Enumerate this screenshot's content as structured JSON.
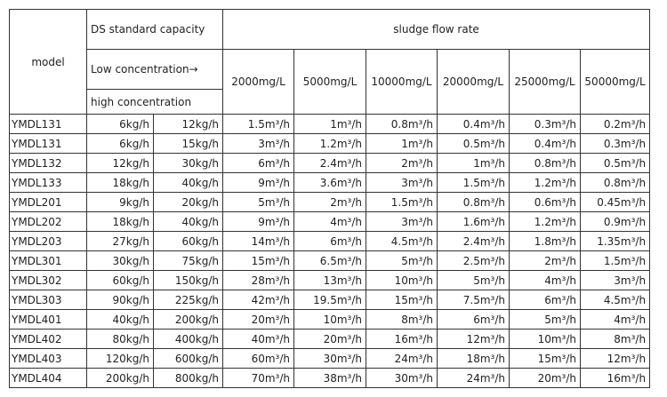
{
  "header": {
    "model": "model",
    "ds_capacity": "DS standard capacity",
    "low_concentration": "Low concentration→",
    "high_concentration": "high concentration",
    "flow_rate": "sludge flow rate",
    "concentrations": [
      "2000mg/L",
      "5000mg/L",
      "10000mg/L",
      "20000mg/L",
      "25000mg/L",
      "50000mg/L"
    ]
  },
  "table": {
    "rows": [
      [
        "YMDL131",
        "6kg/h",
        "12kg/h",
        "1.5m³/h",
        "1m³/h",
        "0.8m³/h",
        "0.4m³/h",
        "0.3m³/h",
        "0.2m³/h"
      ],
      [
        "YMDL131",
        "6kg/h",
        "15kg/h",
        "3m³/h",
        "1.2m³/h",
        "1m³/h",
        "0.5m³/h",
        "0.4m³/h",
        "0.3m³/h"
      ],
      [
        "YMDL132",
        "12kg/h",
        "30kg/h",
        "6m³/h",
        "2.4m³/h",
        "2m³/h",
        "1m³/h",
        "0.8m³/h",
        "0.5m³/h"
      ],
      [
        "YMDL133",
        "18kg/h",
        "40kg/h",
        "9m³/h",
        "3.6m³/h",
        "3m³/h",
        "1.5m³/h",
        "1.2m³/h",
        "0.8m³/h"
      ],
      [
        "YMDL201",
        "9kg/h",
        "20kg/h",
        "5m³/h",
        "2m³/h",
        "1.5m³/h",
        "0.8m³/h",
        "0.6m³/h",
        "0.45m³/h"
      ],
      [
        "YMDL202",
        "18kg/h",
        "40kg/h",
        "9m³/h",
        "4m³/h",
        "3m³/h",
        "1.6m³/h",
        "1.2m³/h",
        "0.9m³/h"
      ],
      [
        "YMDL203",
        "27kg/h",
        "60kg/h",
        "14m³/h",
        "6m³/h",
        "4.5m³/h",
        "2.4m³/h",
        "1.8m³/h",
        "1.35m³/h"
      ],
      [
        "YMDL301",
        "30kg/h",
        "75kg/h",
        "15m³/h",
        "6.5m³/h",
        "5m³/h",
        "2.5m³/h",
        "2m³/h",
        "1.5m³/h"
      ],
      [
        "YMDL302",
        "60kg/h",
        "150kg/h",
        "28m³/h",
        "13m³/h",
        "10m³/h",
        "5m³/h",
        "4m³/h",
        "3m³/h"
      ],
      [
        "YMDL303",
        "90kg/h",
        "225kg/h",
        "42m³/h",
        "19.5m³/h",
        "15m³/h",
        "7.5m³/h",
        "6m³/h",
        "4.5m³/h"
      ],
      [
        "YMDL401",
        "40kg/h",
        "200kg/h",
        "20m³/h",
        "10m³/h",
        "8m³/h",
        "6m³/h",
        "5m³/h",
        "4m³/h"
      ],
      [
        "YMDL402",
        "80kg/h",
        "400kg/h",
        "40m³/h",
        "20m³/h",
        "16m³/h",
        "12m³/h",
        "10m³/h",
        "8m³/h"
      ],
      [
        "YMDL403",
        "120kg/h",
        "600kg/h",
        "60m³/h",
        "30m³/h",
        "24m³/h",
        "18m³/h",
        "15m³/h",
        "12m³/h"
      ],
      [
        "YMDL404",
        "200kg/h",
        "800kg/h",
        "70m³/h",
        "38m³/h",
        "30m³/h",
        "24m³/h",
        "20m³/h",
        "16m³/h"
      ]
    ]
  }
}
